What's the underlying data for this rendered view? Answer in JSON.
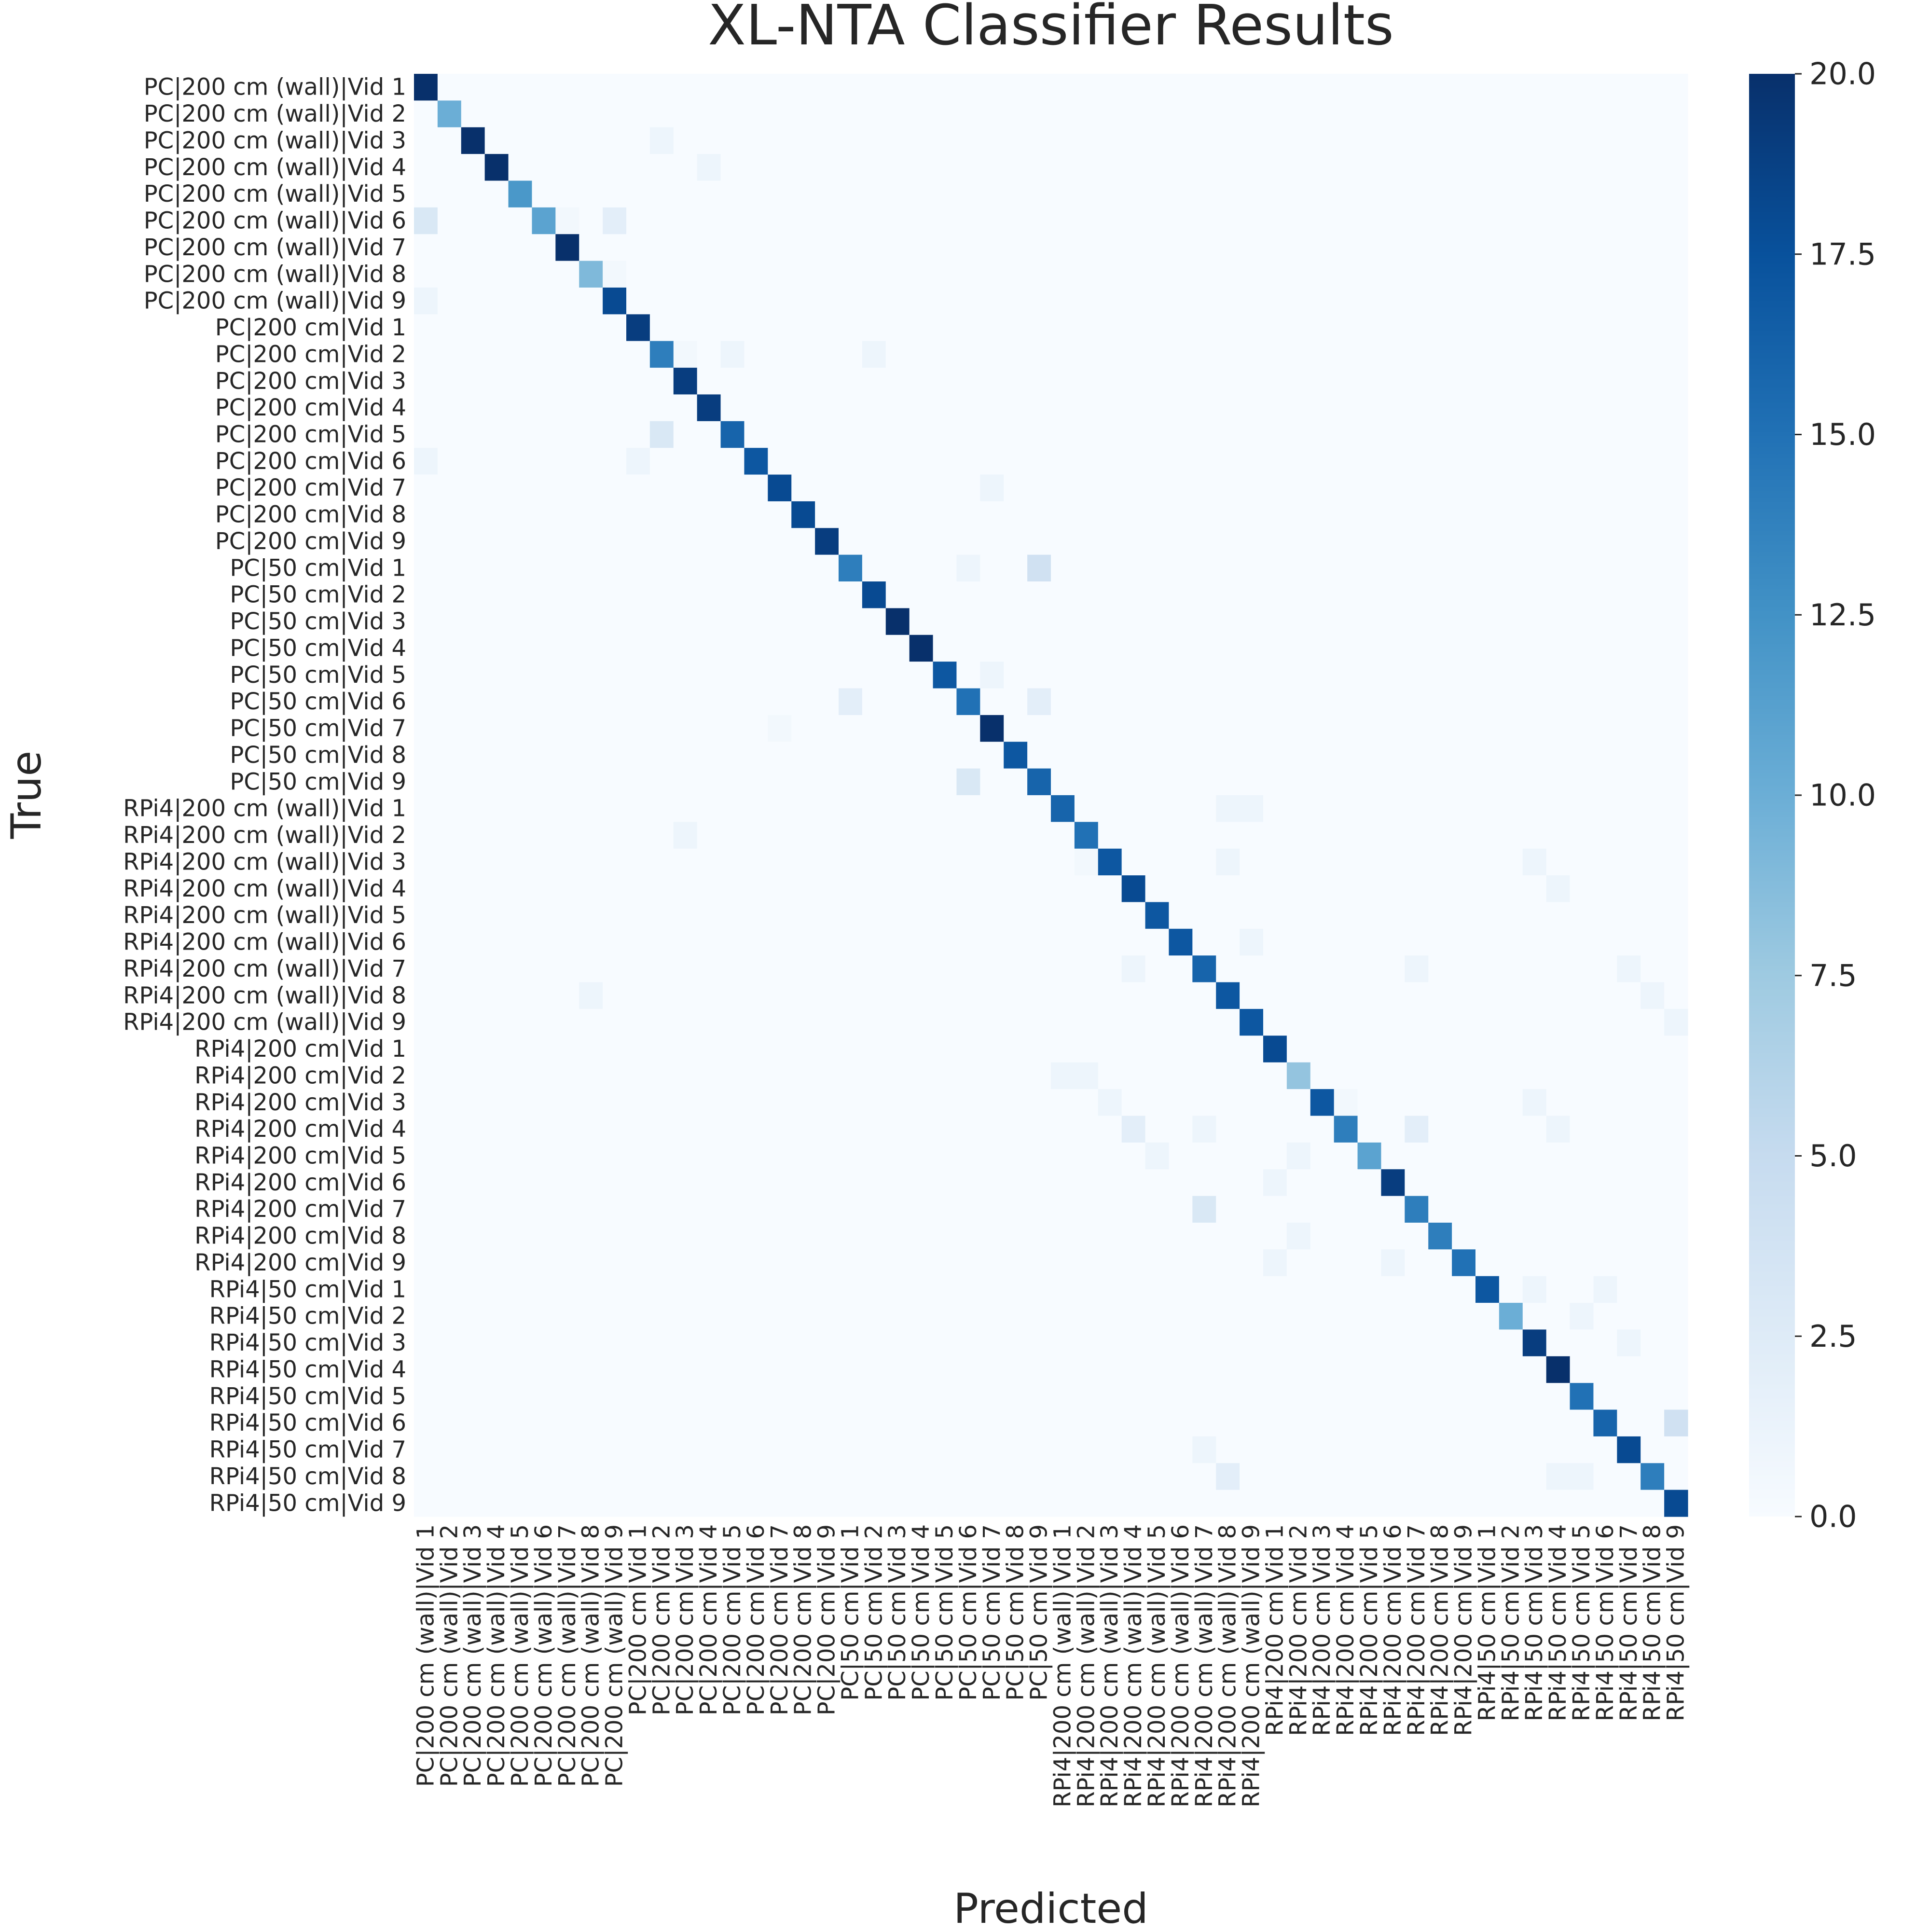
{
  "chart_data": {
    "type": "heatmap",
    "title": "XL-NTA Classifier Results",
    "xlabel": "Predicted",
    "ylabel": "True",
    "colormap": "Blues",
    "vmin": 0,
    "vmax": 20,
    "colorbar_ticks": [
      "0.0",
      "2.5",
      "5.0",
      "7.5",
      "10.0",
      "12.5",
      "15.0",
      "17.5",
      "20.0"
    ],
    "colorbar_tick_values": [
      0,
      2.5,
      5,
      7.5,
      10,
      12.5,
      15,
      17.5,
      20
    ],
    "labels": [
      "PC|200 cm (wall)|Vid 1",
      "PC|200 cm (wall)|Vid 2",
      "PC|200 cm (wall)|Vid 3",
      "PC|200 cm (wall)|Vid 4",
      "PC|200 cm (wall)|Vid 5",
      "PC|200 cm (wall)|Vid 6",
      "PC|200 cm (wall)|Vid 7",
      "PC|200 cm (wall)|Vid 8",
      "PC|200 cm (wall)|Vid 9",
      "PC|200 cm|Vid 1",
      "PC|200 cm|Vid 2",
      "PC|200 cm|Vid 3",
      "PC|200 cm|Vid 4",
      "PC|200 cm|Vid 5",
      "PC|200 cm|Vid 6",
      "PC|200 cm|Vid 7",
      "PC|200 cm|Vid 8",
      "PC|200 cm|Vid 9",
      "PC|50 cm|Vid 1",
      "PC|50 cm|Vid 2",
      "PC|50 cm|Vid 3",
      "PC|50 cm|Vid 4",
      "PC|50 cm|Vid 5",
      "PC|50 cm|Vid 6",
      "PC|50 cm|Vid 7",
      "PC|50 cm|Vid 8",
      "PC|50 cm|Vid 9",
      "RPi4|200 cm (wall)|Vid 1",
      "RPi4|200 cm (wall)|Vid 2",
      "RPi4|200 cm (wall)|Vid 3",
      "RPi4|200 cm (wall)|Vid 4",
      "RPi4|200 cm (wall)|Vid 5",
      "RPi4|200 cm (wall)|Vid 6",
      "RPi4|200 cm (wall)|Vid 7",
      "RPi4|200 cm (wall)|Vid 8",
      "RPi4|200 cm (wall)|Vid 9",
      "RPi4|200 cm|Vid 1",
      "RPi4|200 cm|Vid 2",
      "RPi4|200 cm|Vid 3",
      "RPi4|200 cm|Vid 4",
      "RPi4|200 cm|Vid 5",
      "RPi4|200 cm|Vid 6",
      "RPi4|200 cm|Vid 7",
      "RPi4|200 cm|Vid 8",
      "RPi4|200 cm|Vid 9",
      "RPi4|50 cm|Vid 1",
      "RPi4|50 cm|Vid 2",
      "RPi4|50 cm|Vid 3",
      "RPi4|50 cm|Vid 4",
      "RPi4|50 cm|Vid 5",
      "RPi4|50 cm|Vid 6",
      "RPi4|50 cm|Vid 7",
      "RPi4|50 cm|Vid 8",
      "RPi4|50 cm|Vid 9"
    ],
    "diagonal": [
      20,
      10,
      20,
      20,
      12,
      11,
      20,
      9,
      18,
      19,
      14,
      19,
      19,
      16,
      17,
      18,
      18,
      19,
      14,
      18,
      20,
      20,
      17,
      15,
      20,
      17,
      16,
      16,
      15,
      17,
      18,
      17,
      17,
      16,
      17,
      17,
      18,
      8,
      17,
      14,
      11,
      19,
      14,
      14,
      15,
      17,
      10,
      19,
      20,
      15,
      16,
      18,
      14,
      18
    ],
    "off_diagonal": [
      [
        2,
        10,
        1
      ],
      [
        3,
        12,
        1
      ],
      [
        5,
        0,
        3
      ],
      [
        5,
        6,
        0.5
      ],
      [
        5,
        8,
        2
      ],
      [
        7,
        8,
        0.5
      ],
      [
        8,
        0,
        1
      ],
      [
        10,
        11,
        0.5
      ],
      [
        10,
        13,
        1
      ],
      [
        10,
        19,
        1
      ],
      [
        13,
        10,
        3
      ],
      [
        14,
        0,
        1
      ],
      [
        14,
        9,
        1
      ],
      [
        15,
        24,
        1
      ],
      [
        18,
        23,
        1
      ],
      [
        18,
        26,
        4
      ],
      [
        22,
        24,
        1
      ],
      [
        23,
        18,
        2
      ],
      [
        23,
        26,
        2
      ],
      [
        24,
        15,
        0.5
      ],
      [
        26,
        23,
        3
      ],
      [
        27,
        34,
        1
      ],
      [
        27,
        35,
        1
      ],
      [
        28,
        11,
        1
      ],
      [
        29,
        28,
        0.5
      ],
      [
        29,
        34,
        1
      ],
      [
        29,
        47,
        1
      ],
      [
        30,
        48,
        1
      ],
      [
        32,
        35,
        1
      ],
      [
        33,
        30,
        1
      ],
      [
        33,
        42,
        1
      ],
      [
        33,
        51,
        1
      ],
      [
        34,
        7,
        1
      ],
      [
        34,
        52,
        1
      ],
      [
        35,
        53,
        1
      ],
      [
        37,
        27,
        1
      ],
      [
        37,
        28,
        1
      ],
      [
        38,
        29,
        1
      ],
      [
        38,
        39,
        0.5
      ],
      [
        38,
        47,
        1
      ],
      [
        39,
        30,
        2
      ],
      [
        39,
        33,
        1
      ],
      [
        39,
        42,
        2
      ],
      [
        39,
        48,
        1
      ],
      [
        40,
        31,
        1
      ],
      [
        40,
        37,
        1
      ],
      [
        41,
        36,
        1
      ],
      [
        42,
        33,
        3
      ],
      [
        43,
        37,
        1
      ],
      [
        44,
        36,
        1
      ],
      [
        44,
        41,
        1
      ],
      [
        45,
        47,
        1
      ],
      [
        45,
        50,
        1
      ],
      [
        46,
        49,
        1
      ],
      [
        47,
        51,
        1
      ],
      [
        50,
        53,
        4
      ],
      [
        51,
        33,
        1
      ],
      [
        52,
        34,
        2
      ],
      [
        52,
        48,
        1
      ],
      [
        52,
        49,
        1
      ]
    ]
  }
}
